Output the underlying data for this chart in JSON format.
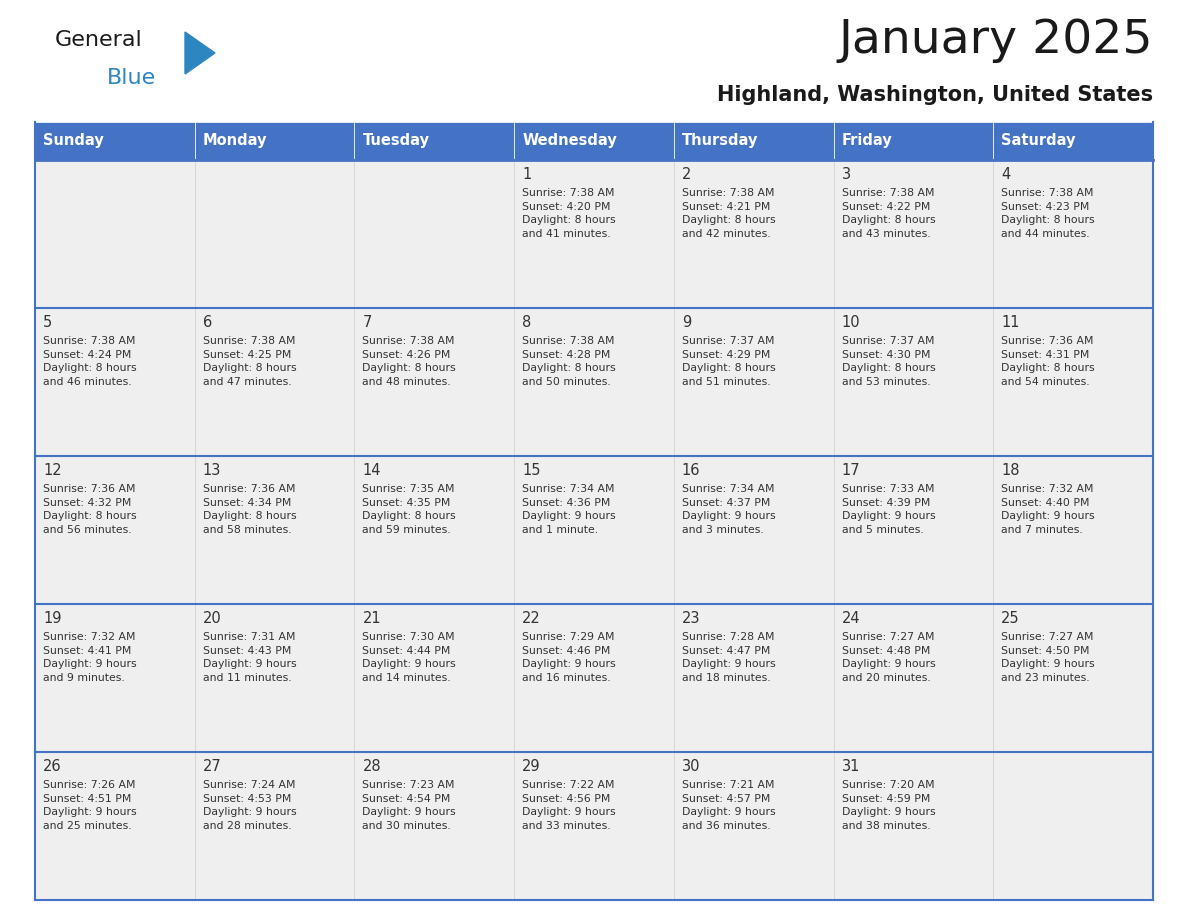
{
  "title": "January 2025",
  "subtitle": "Highland, Washington, United States",
  "header_color": "#4472C4",
  "header_text_color": "#FFFFFF",
  "cell_bg_color": "#EFEFEF",
  "row_separator_color": "#4472C4",
  "col_separator_color": "#CCCCCC",
  "text_color": "#333333",
  "days_of_week": [
    "Sunday",
    "Monday",
    "Tuesday",
    "Wednesday",
    "Thursday",
    "Friday",
    "Saturday"
  ],
  "weeks": [
    [
      {
        "day": "",
        "info": ""
      },
      {
        "day": "",
        "info": ""
      },
      {
        "day": "",
        "info": ""
      },
      {
        "day": "1",
        "info": "Sunrise: 7:38 AM\nSunset: 4:20 PM\nDaylight: 8 hours\nand 41 minutes."
      },
      {
        "day": "2",
        "info": "Sunrise: 7:38 AM\nSunset: 4:21 PM\nDaylight: 8 hours\nand 42 minutes."
      },
      {
        "day": "3",
        "info": "Sunrise: 7:38 AM\nSunset: 4:22 PM\nDaylight: 8 hours\nand 43 minutes."
      },
      {
        "day": "4",
        "info": "Sunrise: 7:38 AM\nSunset: 4:23 PM\nDaylight: 8 hours\nand 44 minutes."
      }
    ],
    [
      {
        "day": "5",
        "info": "Sunrise: 7:38 AM\nSunset: 4:24 PM\nDaylight: 8 hours\nand 46 minutes."
      },
      {
        "day": "6",
        "info": "Sunrise: 7:38 AM\nSunset: 4:25 PM\nDaylight: 8 hours\nand 47 minutes."
      },
      {
        "day": "7",
        "info": "Sunrise: 7:38 AM\nSunset: 4:26 PM\nDaylight: 8 hours\nand 48 minutes."
      },
      {
        "day": "8",
        "info": "Sunrise: 7:38 AM\nSunset: 4:28 PM\nDaylight: 8 hours\nand 50 minutes."
      },
      {
        "day": "9",
        "info": "Sunrise: 7:37 AM\nSunset: 4:29 PM\nDaylight: 8 hours\nand 51 minutes."
      },
      {
        "day": "10",
        "info": "Sunrise: 7:37 AM\nSunset: 4:30 PM\nDaylight: 8 hours\nand 53 minutes."
      },
      {
        "day": "11",
        "info": "Sunrise: 7:36 AM\nSunset: 4:31 PM\nDaylight: 8 hours\nand 54 minutes."
      }
    ],
    [
      {
        "day": "12",
        "info": "Sunrise: 7:36 AM\nSunset: 4:32 PM\nDaylight: 8 hours\nand 56 minutes."
      },
      {
        "day": "13",
        "info": "Sunrise: 7:36 AM\nSunset: 4:34 PM\nDaylight: 8 hours\nand 58 minutes."
      },
      {
        "day": "14",
        "info": "Sunrise: 7:35 AM\nSunset: 4:35 PM\nDaylight: 8 hours\nand 59 minutes."
      },
      {
        "day": "15",
        "info": "Sunrise: 7:34 AM\nSunset: 4:36 PM\nDaylight: 9 hours\nand 1 minute."
      },
      {
        "day": "16",
        "info": "Sunrise: 7:34 AM\nSunset: 4:37 PM\nDaylight: 9 hours\nand 3 minutes."
      },
      {
        "day": "17",
        "info": "Sunrise: 7:33 AM\nSunset: 4:39 PM\nDaylight: 9 hours\nand 5 minutes."
      },
      {
        "day": "18",
        "info": "Sunrise: 7:32 AM\nSunset: 4:40 PM\nDaylight: 9 hours\nand 7 minutes."
      }
    ],
    [
      {
        "day": "19",
        "info": "Sunrise: 7:32 AM\nSunset: 4:41 PM\nDaylight: 9 hours\nand 9 minutes."
      },
      {
        "day": "20",
        "info": "Sunrise: 7:31 AM\nSunset: 4:43 PM\nDaylight: 9 hours\nand 11 minutes."
      },
      {
        "day": "21",
        "info": "Sunrise: 7:30 AM\nSunset: 4:44 PM\nDaylight: 9 hours\nand 14 minutes."
      },
      {
        "day": "22",
        "info": "Sunrise: 7:29 AM\nSunset: 4:46 PM\nDaylight: 9 hours\nand 16 minutes."
      },
      {
        "day": "23",
        "info": "Sunrise: 7:28 AM\nSunset: 4:47 PM\nDaylight: 9 hours\nand 18 minutes."
      },
      {
        "day": "24",
        "info": "Sunrise: 7:27 AM\nSunset: 4:48 PM\nDaylight: 9 hours\nand 20 minutes."
      },
      {
        "day": "25",
        "info": "Sunrise: 7:27 AM\nSunset: 4:50 PM\nDaylight: 9 hours\nand 23 minutes."
      }
    ],
    [
      {
        "day": "26",
        "info": "Sunrise: 7:26 AM\nSunset: 4:51 PM\nDaylight: 9 hours\nand 25 minutes."
      },
      {
        "day": "27",
        "info": "Sunrise: 7:24 AM\nSunset: 4:53 PM\nDaylight: 9 hours\nand 28 minutes."
      },
      {
        "day": "28",
        "info": "Sunrise: 7:23 AM\nSunset: 4:54 PM\nDaylight: 9 hours\nand 30 minutes."
      },
      {
        "day": "29",
        "info": "Sunrise: 7:22 AM\nSunset: 4:56 PM\nDaylight: 9 hours\nand 33 minutes."
      },
      {
        "day": "30",
        "info": "Sunrise: 7:21 AM\nSunset: 4:57 PM\nDaylight: 9 hours\nand 36 minutes."
      },
      {
        "day": "31",
        "info": "Sunrise: 7:20 AM\nSunset: 4:59 PM\nDaylight: 9 hours\nand 38 minutes."
      },
      {
        "day": "",
        "info": ""
      }
    ]
  ],
  "logo_color_general": "#1A1A1A",
  "logo_color_blue": "#2E86C1",
  "logo_triangle_color": "#2E86C1"
}
